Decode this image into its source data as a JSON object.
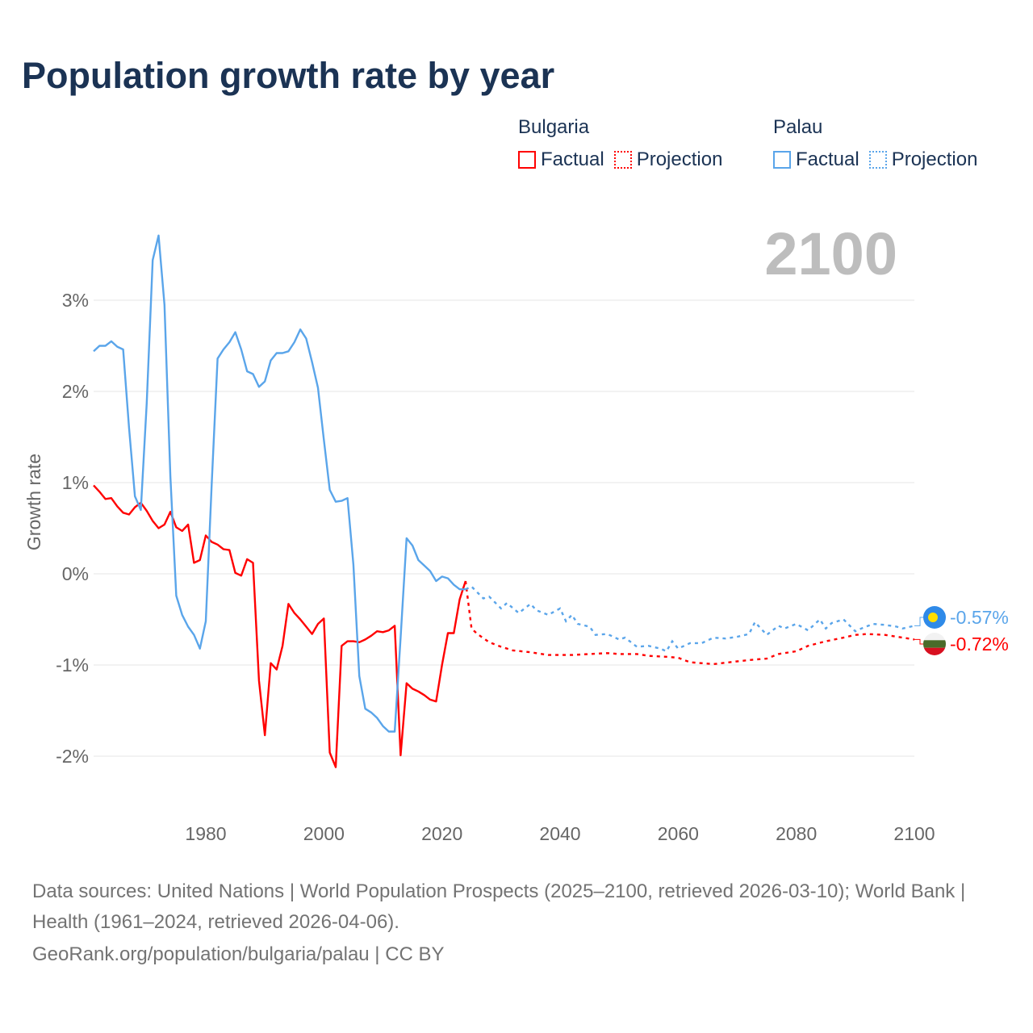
{
  "title": "Population growth rate by year",
  "legend": {
    "groups": [
      {
        "name": "Bulgaria",
        "color": "#ff0000",
        "factual_label": "Factual",
        "projection_label": "Projection"
      },
      {
        "name": "Palau",
        "color": "#5aa5ea",
        "factual_label": "Factual",
        "projection_label": "Projection"
      }
    ]
  },
  "current_year_label": "2100",
  "footer": {
    "sources": "Data sources: United Nations | World Population Prospects (2025–2100, retrieved 2026-03-10); World Bank | Health (1961–2024, retrieved 2026-04-06).",
    "credit": "GeoRank.org/population/bulgaria/palau | CC BY"
  },
  "chart_data": {
    "type": "line",
    "title": "Population growth rate by year",
    "xlabel": "",
    "ylabel": "Growth rate",
    "xlim": [
      1961,
      2100
    ],
    "ylim": [
      -2.5,
      3.8
    ],
    "x_ticks": [
      1980,
      2000,
      2020,
      2040,
      2060,
      2080,
      2100
    ],
    "x_tick_labels": [
      "1980",
      "2000",
      "2020",
      "2040",
      "2060",
      "2080",
      "2100"
    ],
    "y_ticks": [
      3,
      2,
      1,
      0,
      -1,
      -2
    ],
    "y_tick_labels": [
      "3%",
      "2%",
      "1%",
      "0%",
      "-1%",
      "-2%"
    ],
    "grid": true,
    "legend_position": "top-right",
    "series": [
      {
        "name": "Bulgaria",
        "color": "#ff0000",
        "end_label": "-0.72%",
        "flag": "bulgaria-flag",
        "factual": {
          "x": [
            1961,
            1962,
            1963,
            1964,
            1965,
            1966,
            1967,
            1968,
            1969,
            1970,
            1971,
            1972,
            1973,
            1974,
            1975,
            1976,
            1977,
            1978,
            1979,
            1980,
            1981,
            1982,
            1983,
            1984,
            1985,
            1986,
            1987,
            1988,
            1989,
            1990,
            1991,
            1992,
            1993,
            1994,
            1995,
            1996,
            1997,
            1998,
            1999,
            2000,
            2001,
            2002,
            2003,
            2004,
            2005,
            2006,
            2007,
            2008,
            2009,
            2010,
            2011,
            2012,
            2013,
            2014,
            2015,
            2016,
            2017,
            2018,
            2019,
            2020,
            2021,
            2022,
            2023,
            2024
          ],
          "y": [
            0.97,
            0.9,
            0.82,
            0.83,
            0.74,
            0.67,
            0.65,
            0.73,
            0.78,
            0.69,
            0.58,
            0.5,
            0.54,
            0.68,
            0.51,
            0.47,
            0.54,
            0.12,
            0.15,
            0.42,
            0.35,
            0.32,
            0.27,
            0.26,
            0.01,
            -0.02,
            0.16,
            0.12,
            -1.17,
            -1.77,
            -0.98,
            -1.05,
            -0.79,
            -0.33,
            -0.43,
            -0.5,
            -0.58,
            -0.66,
            -0.55,
            -0.49,
            -1.96,
            -2.12,
            -0.79,
            -0.74,
            -0.74,
            -0.75,
            -0.72,
            -0.68,
            -0.63,
            -0.64,
            -0.62,
            -0.57,
            -1.99,
            -1.2,
            -1.26,
            -1.29,
            -1.33,
            -1.38,
            -1.4,
            -1.0,
            -0.65,
            -0.65,
            -0.28,
            -0.08
          ]
        },
        "projection": {
          "x": [
            2024,
            2025,
            2026,
            2028,
            2030,
            2032,
            2035,
            2038,
            2040,
            2042,
            2045,
            2048,
            2050,
            2053,
            2055,
            2058,
            2060,
            2062,
            2066,
            2070,
            2073,
            2075,
            2077,
            2080,
            2082,
            2085,
            2088,
            2090,
            2092,
            2095,
            2098,
            2100
          ],
          "y": [
            -0.08,
            -0.6,
            -0.66,
            -0.75,
            -0.8,
            -0.84,
            -0.86,
            -0.89,
            -0.89,
            -0.89,
            -0.88,
            -0.87,
            -0.88,
            -0.88,
            -0.9,
            -0.91,
            -0.92,
            -0.97,
            -0.99,
            -0.96,
            -0.94,
            -0.93,
            -0.88,
            -0.85,
            -0.79,
            -0.74,
            -0.7,
            -0.67,
            -0.66,
            -0.67,
            -0.7,
            -0.72
          ]
        }
      },
      {
        "name": "Palau",
        "color": "#5aa5ea",
        "end_label": "-0.57%",
        "flag": "palau-flag",
        "factual": {
          "x": [
            1961,
            1962,
            1963,
            1964,
            1965,
            1966,
            1967,
            1968,
            1969,
            1970,
            1971,
            1972,
            1973,
            1974,
            1975,
            1976,
            1977,
            1978,
            1979,
            1980,
            1981,
            1982,
            1983,
            1984,
            1985,
            1986,
            1987,
            1988,
            1989,
            1990,
            1991,
            1992,
            1993,
            1994,
            1995,
            1996,
            1997,
            1998,
            1999,
            2000,
            2001,
            2002,
            2003,
            2004,
            2005,
            2006,
            2007,
            2008,
            2009,
            2010,
            2011,
            2012,
            2013,
            2014,
            2015,
            2016,
            2017,
            2018,
            2019,
            2020,
            2021,
            2022,
            2023,
            2024
          ],
          "y": [
            2.44,
            2.5,
            2.5,
            2.55,
            2.49,
            2.46,
            1.6,
            0.85,
            0.7,
            1.87,
            3.44,
            3.71,
            2.95,
            1.07,
            -0.24,
            -0.45,
            -0.58,
            -0.67,
            -0.82,
            -0.52,
            0.98,
            2.36,
            2.46,
            2.54,
            2.65,
            2.46,
            2.22,
            2.19,
            2.05,
            2.11,
            2.34,
            2.42,
            2.42,
            2.44,
            2.54,
            2.68,
            2.58,
            2.32,
            2.04,
            1.47,
            0.92,
            0.79,
            0.8,
            0.83,
            0.1,
            -1.12,
            -1.48,
            -1.52,
            -1.58,
            -1.67,
            -1.73,
            -1.73,
            -0.7,
            0.39,
            0.31,
            0.15,
            0.09,
            0.03,
            -0.08,
            -0.03,
            -0.05,
            -0.12,
            -0.17,
            -0.17
          ]
        },
        "projection": {
          "x": [
            2024,
            2025,
            2027,
            2028,
            2030,
            2031,
            2033,
            2035,
            2036,
            2038,
            2040,
            2041,
            2042,
            2043,
            2045,
            2046,
            2048,
            2050,
            2051,
            2053,
            2055,
            2057,
            2058,
            2059,
            2060,
            2062,
            2064,
            2066,
            2068,
            2070,
            2072,
            2073,
            2075,
            2077,
            2078,
            2080,
            2082,
            2084,
            2085,
            2086,
            2088,
            2090,
            2091,
            2093,
            2095,
            2097,
            2098,
            2100
          ],
          "y": [
            -0.17,
            -0.14,
            -0.27,
            -0.25,
            -0.38,
            -0.32,
            -0.43,
            -0.33,
            -0.4,
            -0.45,
            -0.38,
            -0.52,
            -0.45,
            -0.55,
            -0.58,
            -0.67,
            -0.66,
            -0.72,
            -0.7,
            -0.8,
            -0.79,
            -0.82,
            -0.85,
            -0.74,
            -0.82,
            -0.76,
            -0.76,
            -0.7,
            -0.71,
            -0.69,
            -0.66,
            -0.53,
            -0.67,
            -0.57,
            -0.6,
            -0.55,
            -0.62,
            -0.5,
            -0.6,
            -0.54,
            -0.5,
            -0.63,
            -0.6,
            -0.55,
            -0.56,
            -0.58,
            -0.6,
            -0.57
          ]
        }
      }
    ]
  }
}
